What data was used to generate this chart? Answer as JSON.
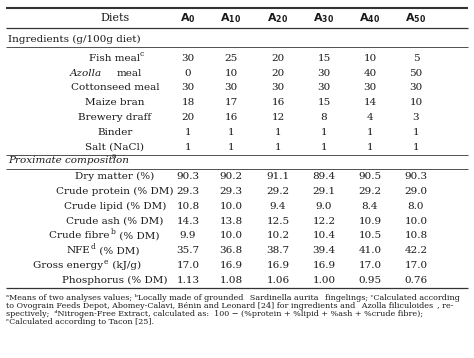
{
  "col_headers": [
    "Diets",
    "$\\mathbf{A_0}$",
    "$\\mathbf{A_{10}}$",
    "$\\mathbf{A_{20}}$",
    "$\\mathbf{A_{30}}$",
    "$\\mathbf{A_{40}}$",
    "$\\mathbf{A_{50}}$"
  ],
  "section1_label": "Ingredients (g/100g diet)",
  "section1_rows": [
    [
      "Fish meal$^c$",
      "30",
      "25",
      "20",
      "15",
      "10",
      "5"
    ],
    [
      "_Azolla_ meal",
      "0",
      "10",
      "20",
      "30",
      "40",
      "50"
    ],
    [
      "Cottonseed meal",
      "30",
      "30",
      "30",
      "30",
      "30",
      "30"
    ],
    [
      "Maize bran",
      "18",
      "17",
      "16",
      "15",
      "14",
      "10"
    ],
    [
      "Brewery draff",
      "20",
      "16",
      "12",
      "8",
      "4",
      "3"
    ],
    [
      "Binder",
      "1",
      "1",
      "1",
      "1",
      "1",
      "1"
    ],
    [
      "Salt (NaCl)",
      "1",
      "1",
      "1",
      "1",
      "1",
      "1"
    ]
  ],
  "section2_label": "Proximate composition$^a$",
  "section2_rows": [
    [
      "Dry matter (%)",
      "90.3",
      "90.2",
      "91.1",
      "89.4",
      "90.5",
      "90.3"
    ],
    [
      "Crude protein (% DM)",
      "29.3",
      "29.3",
      "29.2",
      "29.1",
      "29.2",
      "29.0"
    ],
    [
      "Crude lipid (% DM)",
      "10.8",
      "10.0",
      "9.4",
      "9.0",
      "8.4",
      "8.0"
    ],
    [
      "Crude ash (% DM)",
      "14.3",
      "13.8",
      "12.5",
      "12.2",
      "10.9",
      "10.0"
    ],
    [
      "Crude fibre$^b$ (% DM)",
      "9.9",
      "10.0",
      "10.2",
      "10.4",
      "10.5",
      "10.8"
    ],
    [
      "NFE$^d$ (% DM)",
      "35.7",
      "36.8",
      "38.7",
      "39.4",
      "41.0",
      "42.2"
    ],
    [
      "Gross energy$^e$ (kJ/g)",
      "17.0",
      "16.9",
      "16.9",
      "16.9",
      "17.0",
      "17.0"
    ],
    [
      "Phosphorus (% DM)",
      "1.13",
      "1.08",
      "1.06",
      "1.00",
      "0.95",
      "0.76"
    ]
  ],
  "footnote_lines": [
    "$^a$Means of two analyses values; $^b$Locally made of grounded \\textit{Sardinella aurita} fingelings; $^c$Calculated according",
    "to Ovograin Feeds Depot, Abomey-Calavi, Bénin and Leonard [24] for ingredients and \\textit{Azolla filiculoides}, re-",
    "spectively;  $^d$Nitrogen-Free Extract, calculated as:  100 − (%protein + %lipid + %ash + %crude fibre);",
    "$^e$Calculated according to Tacon [25]."
  ],
  "text_color": "#1a1a1a",
  "line_color": "#333333",
  "fs_header": 8.0,
  "fs_section": 7.5,
  "fs_data": 7.5,
  "fs_footnote": 5.8
}
